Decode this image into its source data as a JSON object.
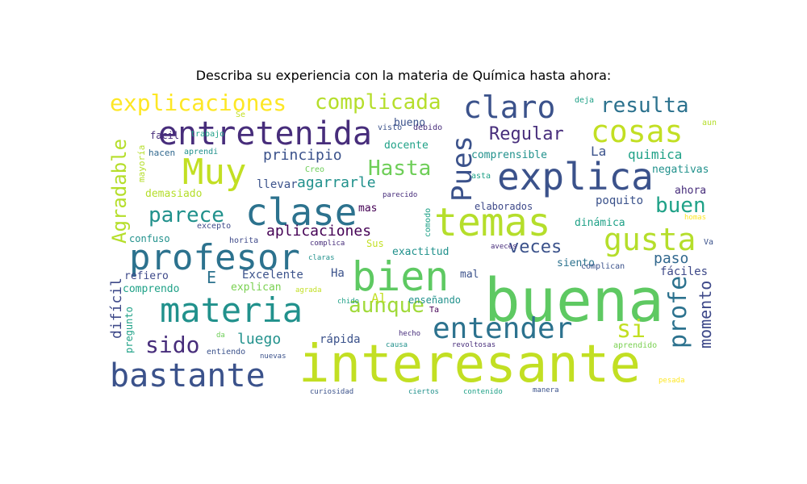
{
  "title": "Describa su experiencia con la materia de Química hasta ahora:",
  "words": [
    {
      "text": "buena",
      "color": "#5ec962"
    },
    {
      "text": "interesante",
      "color": "#c2df23"
    },
    {
      "text": "bastante",
      "color": "#3b528b"
    },
    {
      "text": "materia",
      "color": "#21918c"
    },
    {
      "text": "profesor",
      "color": "#2c728e"
    },
    {
      "text": "bien",
      "color": "#5ec962"
    },
    {
      "text": "temas",
      "color": "#b5de2b"
    },
    {
      "text": "clase",
      "color": "#2c728e"
    },
    {
      "text": "Muy",
      "color": "#c2df23"
    },
    {
      "text": "entretenida",
      "color": "#472d7b"
    },
    {
      "text": "explica",
      "color": "#3b528b"
    },
    {
      "text": "claro",
      "color": "#3b528b"
    },
    {
      "text": "cosas",
      "color": "#c2df23"
    },
    {
      "text": "gusta",
      "color": "#b5de2b"
    },
    {
      "text": "entender",
      "color": "#2c728e"
    },
    {
      "text": "explicaciones",
      "color": "#fde725"
    },
    {
      "text": "complicada",
      "color": "#b5de2b"
    },
    {
      "text": "resulta",
      "color": "#2c728e"
    },
    {
      "text": "Pues",
      "color": "#3b528b"
    },
    {
      "text": "Hasta",
      "color": "#6ece58"
    },
    {
      "text": "Regular",
      "color": "#472d7b"
    },
    {
      "text": "parece",
      "color": "#21918c"
    },
    {
      "text": "aunque",
      "color": "#a0da39"
    },
    {
      "text": "sido",
      "color": "#472d7b"
    },
    {
      "text": "si",
      "color": "#c2df23"
    },
    {
      "text": "profe",
      "color": "#2c728e"
    },
    {
      "text": "momento",
      "color": "#3e4989"
    },
    {
      "text": "Agradable",
      "color": "#b5de2b"
    },
    {
      "text": "buen",
      "color": "#1fa187"
    },
    {
      "text": "veces",
      "color": "#3b528b"
    },
    {
      "text": "aplicaciones",
      "color": "#440154"
    },
    {
      "text": "principio",
      "color": "#3b528b"
    },
    {
      "text": "agarrarle",
      "color": "#21918c"
    },
    {
      "text": "luego",
      "color": "#21918c"
    },
    {
      "text": "difícil",
      "color": "#3e4989"
    },
    {
      "text": "paso",
      "color": "#31688e"
    },
    {
      "text": "E",
      "color": "#2c728e"
    },
    {
      "text": "Excelente",
      "color": "#3b528b"
    },
    {
      "text": "rápida",
      "color": "#3b528b"
    },
    {
      "text": "poquito",
      "color": "#3b528b"
    },
    {
      "text": "La",
      "color": "#3b528b"
    },
    {
      "text": "quimica",
      "color": "#1fa187"
    },
    {
      "text": "negativas",
      "color": "#21918c"
    },
    {
      "text": "ahora",
      "color": "#472d7b"
    },
    {
      "text": "fáciles",
      "color": "#3e4989"
    },
    {
      "text": "dinámica",
      "color": "#1fa187"
    },
    {
      "text": "elaborados",
      "color": "#3e4989"
    },
    {
      "text": "comprensible",
      "color": "#21918c"
    },
    {
      "text": "docente",
      "color": "#1fa187"
    },
    {
      "text": "bueno",
      "color": "#3b528b"
    },
    {
      "text": "llevar",
      "color": "#3b528b"
    },
    {
      "text": "demasiado",
      "color": "#b5de2b"
    },
    {
      "text": "confuso",
      "color": "#21918c"
    },
    {
      "text": "refiero",
      "color": "#3e4989"
    },
    {
      "text": "comprendo",
      "color": "#1fa187"
    },
    {
      "text": "pregunto",
      "color": "#1fa187"
    },
    {
      "text": "mas",
      "color": "#440154"
    },
    {
      "text": "exactitud",
      "color": "#21918c"
    },
    {
      "text": "siento",
      "color": "#2c728e"
    },
    {
      "text": "mal",
      "color": "#3b528b"
    },
    {
      "text": "enseñando",
      "color": "#21918c"
    },
    {
      "text": "explican",
      "color": "#7ad151"
    },
    {
      "text": "Ha",
      "color": "#3b528b"
    },
    {
      "text": "Al",
      "color": "#c2df23"
    },
    {
      "text": "Sus",
      "color": "#c2df23"
    },
    {
      "text": "facil",
      "color": "#472d7b"
    },
    {
      "text": "hacen",
      "color": "#31688e"
    },
    {
      "text": "aprendi",
      "color": "#21918c"
    },
    {
      "text": "mayoría",
      "color": "#b5de2b"
    },
    {
      "text": "Creo",
      "color": "#6ece58"
    },
    {
      "text": "trabajo",
      "color": "#1fa187"
    },
    {
      "text": "Se",
      "color": "#c2df23"
    },
    {
      "text": "visto",
      "color": "#3b528b"
    },
    {
      "text": "debido",
      "color": "#472d7b"
    },
    {
      "text": "deja",
      "color": "#1fa187"
    },
    {
      "text": "aun",
      "color": "#b5de2b"
    },
    {
      "text": "asta",
      "color": "#1fa187"
    },
    {
      "text": "parecido",
      "color": "#472d7b"
    },
    {
      "text": "comodo",
      "color": "#1fa187"
    },
    {
      "text": "excepto",
      "color": "#3e4989"
    },
    {
      "text": "horita",
      "color": "#3e4989"
    },
    {
      "text": "complica",
      "color": "#472d7b"
    },
    {
      "text": "claras",
      "color": "#21918c"
    },
    {
      "text": "aveces",
      "color": "#472d7b"
    },
    {
      "text": "complican",
      "color": "#3b528b"
    },
    {
      "text": "agrada",
      "color": "#c2df23"
    },
    {
      "text": "chido",
      "color": "#1fa187"
    },
    {
      "text": "Ta",
      "color": "#440154"
    },
    {
      "text": "hecho",
      "color": "#472d7b"
    },
    {
      "text": "causa",
      "color": "#21918c"
    },
    {
      "text": "da",
      "color": "#6ece58"
    },
    {
      "text": "entiendo",
      "color": "#3b528b"
    },
    {
      "text": "nuevas",
      "color": "#3b528b"
    },
    {
      "text": "revoltosas",
      "color": "#472d7b"
    },
    {
      "text": "aprendido",
      "color": "#7ad151"
    },
    {
      "text": "pesada",
      "color": "#fde725"
    },
    {
      "text": "curiosidad",
      "color": "#3b528b"
    },
    {
      "text": "ciertos",
      "color": "#21918c"
    },
    {
      "text": "contenido",
      "color": "#1fa187"
    },
    {
      "text": "manera",
      "color": "#3b528b"
    },
    {
      "text": "Va",
      "color": "#3b528b"
    },
    {
      "text": "homas",
      "color": "#fde725"
    }
  ]
}
